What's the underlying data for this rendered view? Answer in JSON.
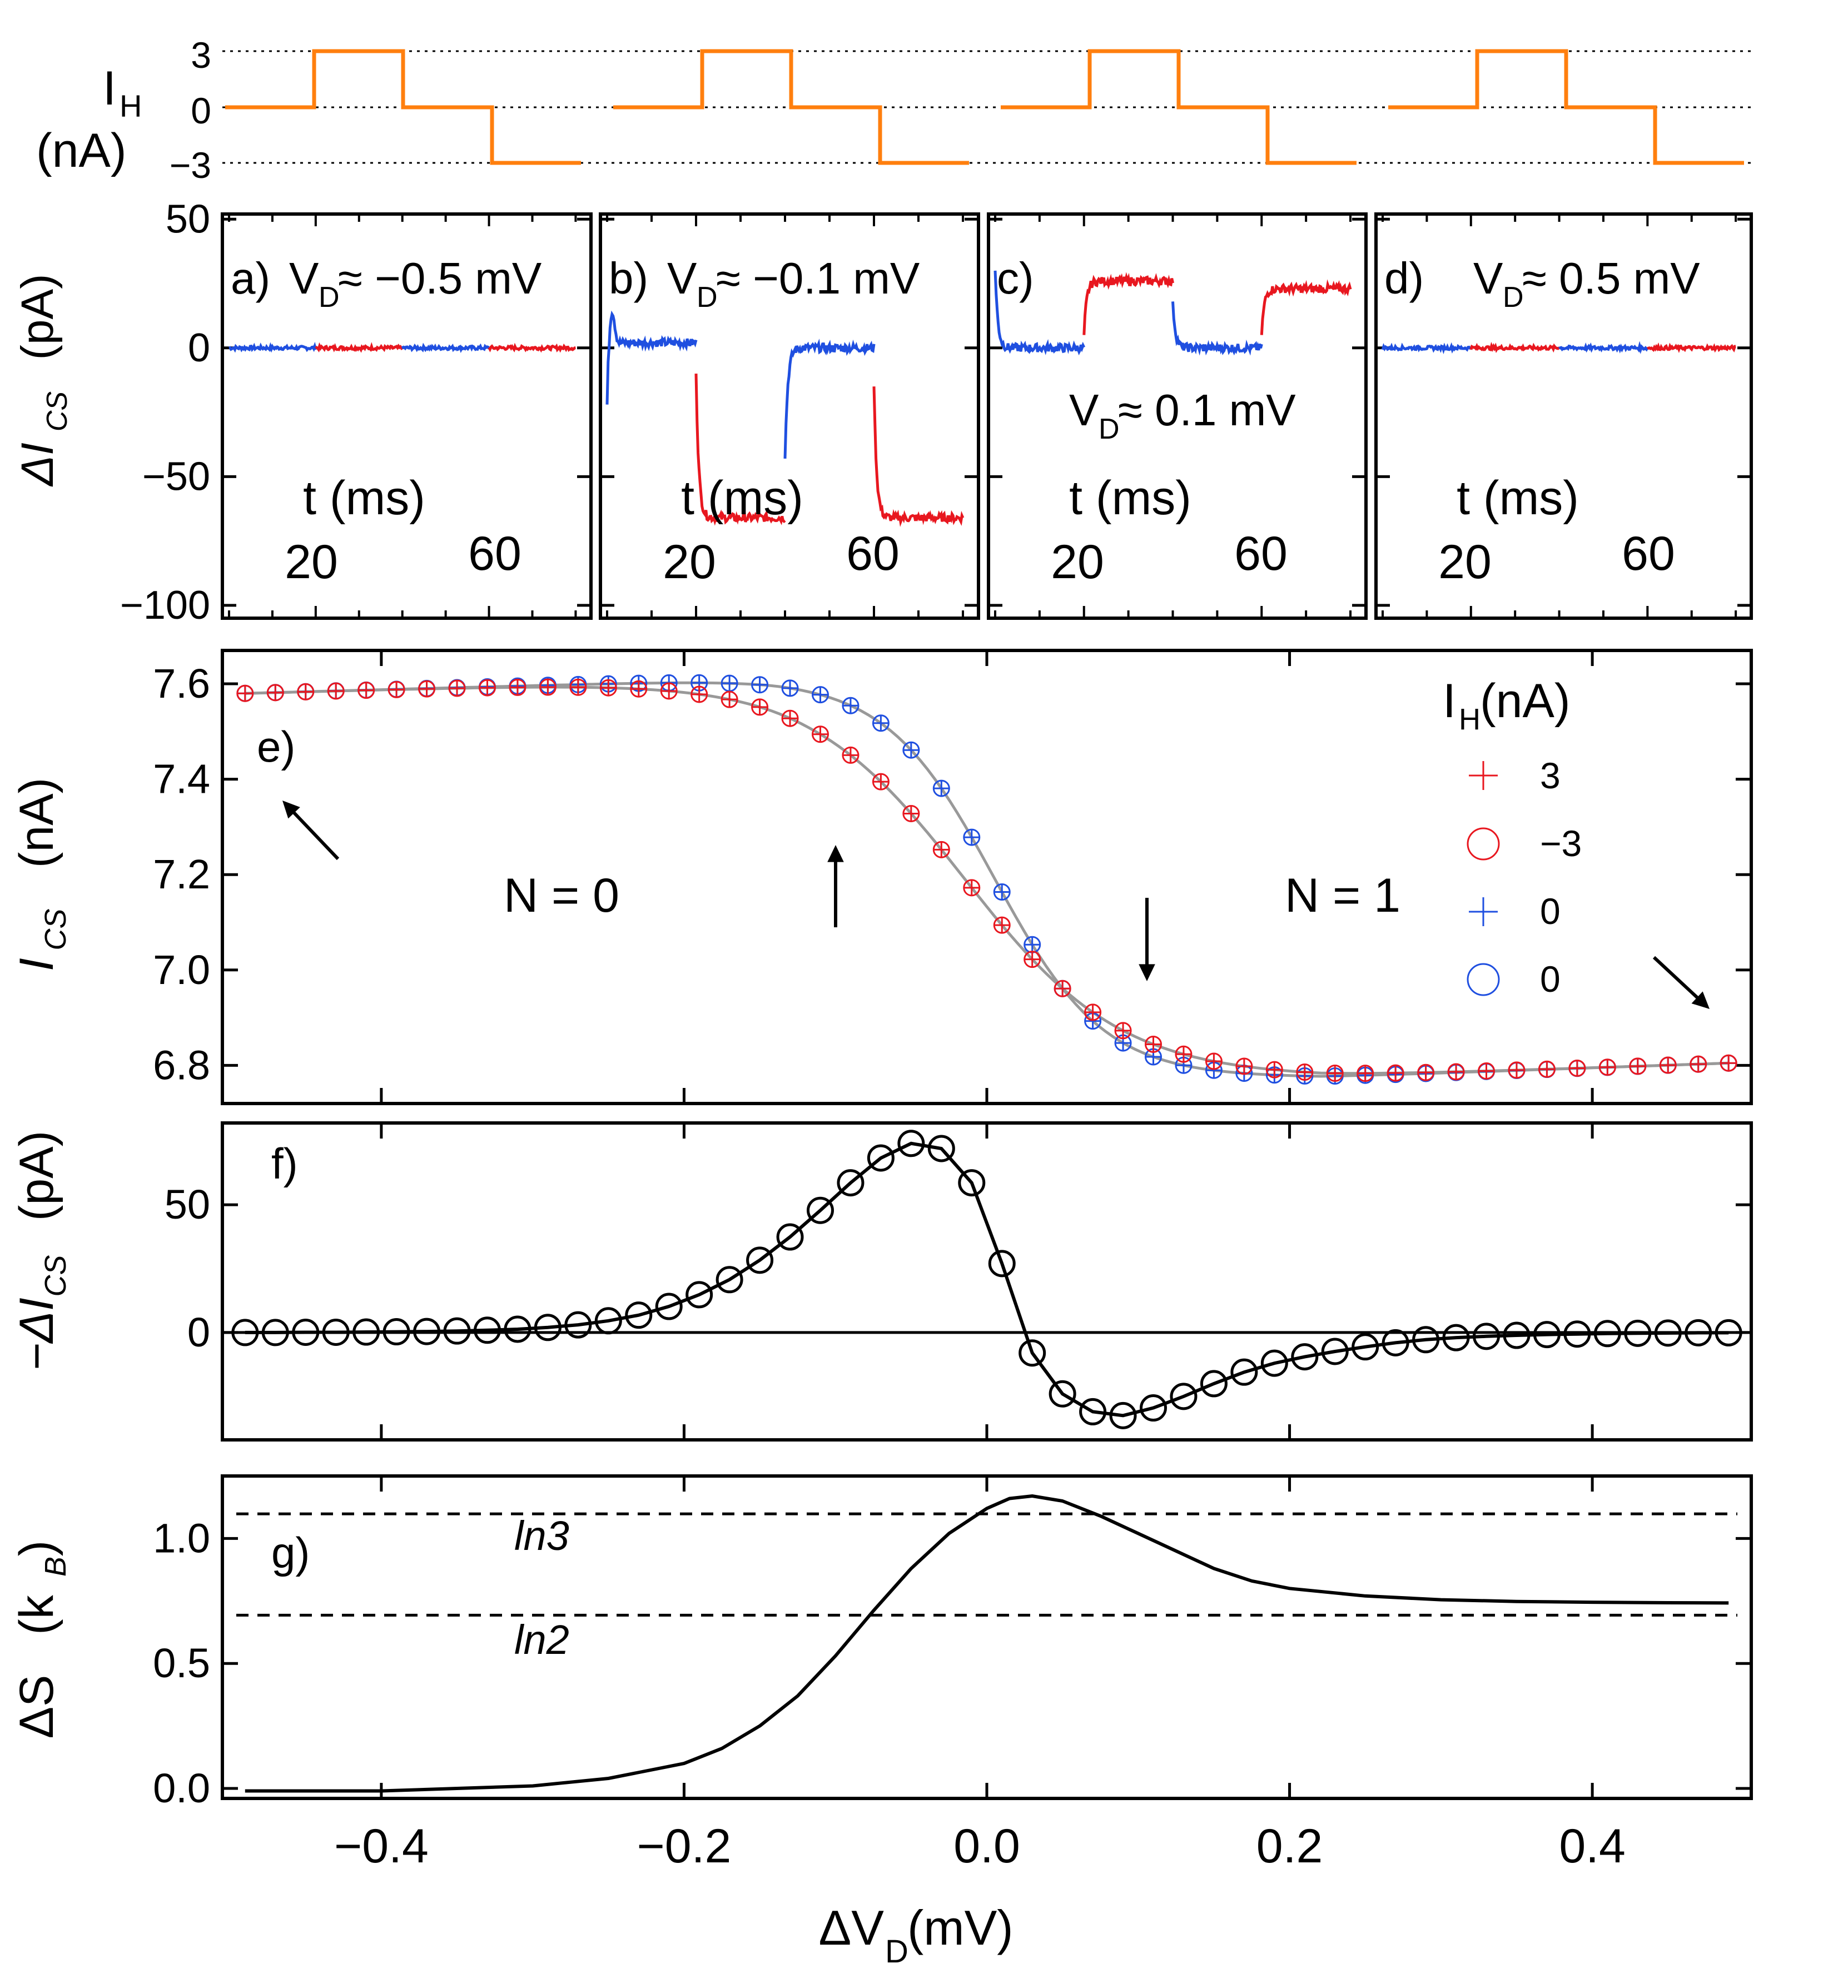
{
  "colors": {
    "heater": "#FF7F0E",
    "heat_pos": "#E8171F",
    "heat_zero": "#1F4FE0",
    "axis": "#000000",
    "fit": "#999999",
    "guide": "#555555"
  },
  "shared_xlabel": {
    "main": "ΔV",
    "sub": "D",
    "unit": " (mV)"
  },
  "chart_data": [
    {
      "id": "heater",
      "type": "line",
      "title": "",
      "ylabel_main": "I",
      "ylabel_sub": "H",
      "ylabel_unit": "(nA)",
      "yticks": [
        3,
        0,
        -3
      ],
      "ytick_labels": [
        "3",
        "0",
        "−3"
      ],
      "x": [
        0,
        20,
        20,
        40,
        40,
        60,
        60,
        80
      ],
      "values": [
        0,
        0,
        3,
        3,
        0,
        0,
        -3,
        -3
      ],
      "cycles": 4,
      "reference_lines": [
        3,
        0,
        -3
      ]
    },
    {
      "id": "traces",
      "type": "line",
      "ylabel_main": "ΔI",
      "ylabel_sub": "CS",
      "ylabel_unit": " (pA)",
      "ylim": [
        -105,
        52
      ],
      "xlim": [
        0,
        82
      ],
      "yticks": [
        50,
        0,
        -50,
        -100
      ],
      "ytick_labels": [
        "50",
        "0",
        "−50",
        "−100"
      ],
      "xlabel": "t (ms)",
      "xtick_labels": [
        "20",
        "60"
      ],
      "panels": [
        {
          "label": "a)",
          "vd_main": "V",
          "vd_sub": "D",
          "vd_value": "≈ −0.5 mV",
          "vd_pos": "top",
          "segments": [
            {
              "heat": "zero",
              "x0": 0,
              "x1": 20,
              "level": 0
            },
            {
              "heat": "pos",
              "x0": 20,
              "x1": 40,
              "level": 0
            },
            {
              "heat": "zero",
              "x0": 40,
              "x1": 60,
              "level": 0
            },
            {
              "heat": "pos",
              "x0": 60,
              "x1": 80,
              "level": 0
            }
          ]
        },
        {
          "label": "b)",
          "vd_main": "V",
          "vd_sub": "D",
          "vd_value": "≈ −0.1 mV",
          "vd_pos": "top",
          "segments": [
            {
              "heat": "zero",
              "x0": 0,
              "x1": 20,
              "level": 2,
              "start": -22,
              "peak": 20
            },
            {
              "heat": "pos",
              "x0": 20,
              "x1": 40,
              "level": -66,
              "start": -10
            },
            {
              "heat": "zero",
              "x0": 40,
              "x1": 60,
              "level": 0,
              "start": -43
            },
            {
              "heat": "pos",
              "x0": 60,
              "x1": 80,
              "level": -66,
              "start": -15
            }
          ]
        },
        {
          "label": "c)",
          "vd_main": "V",
          "vd_sub": "D",
          "vd_value": "≈ 0.1 mV",
          "vd_pos": "middle",
          "segments": [
            {
              "heat": "zero",
              "x0": 0,
              "x1": 20,
              "level": 0,
              "start": 30
            },
            {
              "heat": "pos",
              "x0": 20,
              "x1": 40,
              "level": 26,
              "start": 5
            },
            {
              "heat": "zero",
              "x0": 40,
              "x1": 60,
              "level": 0,
              "start": 18
            },
            {
              "heat": "pos",
              "x0": 60,
              "x1": 80,
              "level": 23,
              "start": 5
            }
          ]
        },
        {
          "label": "d)",
          "vd_main": "V",
          "vd_sub": "D",
          "vd_value": "≈ 0.5 mV",
          "vd_pos": "top",
          "segments": [
            {
              "heat": "zero",
              "x0": 0,
              "x1": 20,
              "level": 0
            },
            {
              "heat": "pos",
              "x0": 20,
              "x1": 40,
              "level": 0
            },
            {
              "heat": "zero",
              "x0": 40,
              "x1": 60,
              "level": 0
            },
            {
              "heat": "pos",
              "x0": 60,
              "x1": 80,
              "level": 0
            }
          ]
        }
      ]
    },
    {
      "id": "e",
      "type": "scatter",
      "label": "e)",
      "ylabel_main": "I",
      "ylabel_sub": "CS",
      "ylabel_unit": " (nA)",
      "ylim": [
        6.72,
        7.67
      ],
      "xlim": [
        -0.505,
        0.505
      ],
      "yticks": [
        6.8,
        7.0,
        7.2,
        7.4,
        7.6
      ],
      "ytick_labels": [
        "6.8",
        "7.0",
        "7.2",
        "7.4",
        "7.6"
      ],
      "fit": {
        "high": 7.61,
        "low": 6.775,
        "slope": -0.03,
        "w_hot": 0.048,
        "w_cold": 0.04,
        "x0_hot": -0.01,
        "x0_cold": 0.0,
        "baseline_start": 7.58
      },
      "legend": {
        "title_main": "I",
        "title_sub": "H",
        "title_unit": " (nA)",
        "entries": [
          {
            "marker": "plus",
            "color": "heat_pos",
            "label": "3"
          },
          {
            "marker": "circle",
            "color": "heat_pos",
            "label": "−3"
          },
          {
            "marker": "plus",
            "color": "heat_zero",
            "label": "0"
          },
          {
            "marker": "circle",
            "color": "heat_zero",
            "label": "0"
          }
        ]
      },
      "annotations": [
        {
          "text": "N = 0",
          "x": -0.32,
          "y": 7.15
        },
        {
          "text": "N = 1",
          "x": 0.33,
          "y": 7.15
        }
      ],
      "arrows": [
        {
          "direction": "up-left",
          "x": -0.47,
          "y": 7.42
        },
        {
          "direction": "up",
          "x": -0.1,
          "y": 7.25
        },
        {
          "direction": "down",
          "x": 0.11,
          "y": 7.08
        },
        {
          "direction": "down-right",
          "x": 0.47,
          "y": 6.98
        }
      ]
    },
    {
      "id": "f",
      "type": "scatter",
      "label": "f)",
      "ylabel_main": "−ΔI",
      "ylabel_sub": "CS",
      "ylabel_unit": " (pA)",
      "ylim": [
        -42,
        82
      ],
      "xlim": [
        -0.505,
        0.505
      ],
      "yticks": [
        0,
        50
      ],
      "ytick_labels": [
        "0",
        "50"
      ],
      "x": [
        -0.49,
        -0.47,
        -0.45,
        -0.43,
        -0.41,
        -0.39,
        -0.37,
        -0.35,
        -0.33,
        -0.31,
        -0.29,
        -0.27,
        -0.25,
        -0.23,
        -0.21,
        -0.19,
        -0.17,
        -0.15,
        -0.13,
        -0.11,
        -0.09,
        -0.07,
        -0.05,
        -0.03,
        -0.01,
        0.01,
        0.03,
        0.05,
        0.07,
        0.09,
        0.11,
        0.13,
        0.15,
        0.17,
        0.19,
        0.21,
        0.23,
        0.25,
        0.27,
        0.29,
        0.31,
        0.33,
        0.35,
        0.37,
        0.39,
        0.41,
        0.43,
        0.45,
        0.47,
        0.49
      ],
      "values": [
        0.0,
        0.0,
        0.1,
        0.1,
        0.2,
        0.3,
        0.4,
        0.6,
        0.9,
        1.3,
        2.0,
        3.0,
        4.6,
        6.8,
        10.2,
        14.8,
        20.7,
        28.3,
        37.4,
        47.8,
        58.6,
        68.3,
        74.0,
        72.0,
        58.6,
        27.0,
        -8.0,
        -24.0,
        -31.0,
        -32.5,
        -29.5,
        -25.0,
        -20.0,
        -15.5,
        -12.0,
        -9.5,
        -7.4,
        -5.6,
        -4.0,
        -2.8,
        -2.0,
        -1.5,
        -1.1,
        -0.8,
        -0.6,
        -0.4,
        -0.3,
        -0.2,
        -0.1,
        -0.1
      ]
    },
    {
      "id": "g",
      "type": "line",
      "label": "g)",
      "ylabel_main": "ΔS",
      "ylabel_sub": "B",
      "ylabel_prefix": " (k",
      "ylabel_suffix": ")",
      "ylim": [
        -0.04,
        1.25
      ],
      "xlim": [
        -0.505,
        0.505
      ],
      "yticks": [
        0.0,
        0.5,
        1.0
      ],
      "ytick_labels": [
        "0.0",
        "0.5",
        "1.0"
      ],
      "xticks": [
        -0.4,
        -0.2,
        0.0,
        0.2,
        0.4
      ],
      "xtick_labels": [
        "−0.4",
        "−0.2",
        "0.0",
        "0.2",
        "0.4"
      ],
      "x": [
        -0.49,
        -0.45,
        -0.4,
        -0.35,
        -0.3,
        -0.25,
        -0.2,
        -0.175,
        -0.15,
        -0.125,
        -0.1,
        -0.075,
        -0.05,
        -0.025,
        0.0,
        0.015,
        0.03,
        0.05,
        0.075,
        0.1,
        0.125,
        0.15,
        0.175,
        0.2,
        0.25,
        0.3,
        0.35,
        0.4,
        0.45,
        0.49
      ],
      "values": [
        -0.01,
        -0.01,
        -0.01,
        0.0,
        0.01,
        0.04,
        0.1,
        0.16,
        0.25,
        0.37,
        0.53,
        0.71,
        0.88,
        1.02,
        1.12,
        1.16,
        1.17,
        1.15,
        1.09,
        1.02,
        0.95,
        0.88,
        0.83,
        0.8,
        0.77,
        0.755,
        0.748,
        0.745,
        0.743,
        0.742
      ],
      "reference_lines": [
        {
          "y": 1.0986,
          "label": "ln3"
        },
        {
          "y": 0.6931,
          "label": "ln2"
        }
      ]
    }
  ]
}
